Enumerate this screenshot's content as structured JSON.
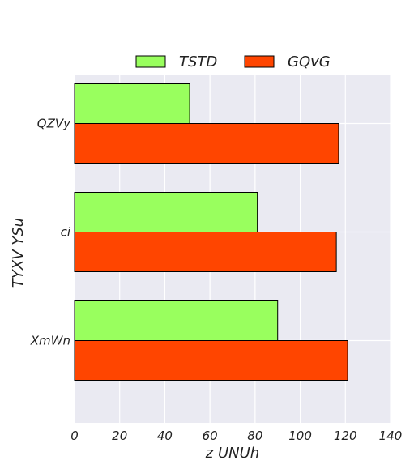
{
  "chart_data": {
    "type": "bar",
    "orientation": "horizontal",
    "categories": [
      "QZVy",
      "ci",
      "XmWn"
    ],
    "series": [
      {
        "name": "TSTD",
        "color": "#99ff5e",
        "values": [
          51,
          81,
          90
        ]
      },
      {
        "name": "GQvG",
        "color": "#ff4500",
        "values": [
          117,
          116,
          121
        ]
      }
    ],
    "xlabel": "z UNUh",
    "ylabel": "TYXV YSu",
    "xlim": [
      0,
      140
    ],
    "xticks": [
      0,
      20,
      40,
      60,
      80,
      100,
      120,
      140
    ],
    "grid": true,
    "legend_position": "top-center",
    "background": "#eaeaf2",
    "gridline_color": "#ffffff",
    "edge_color": "#000000"
  }
}
